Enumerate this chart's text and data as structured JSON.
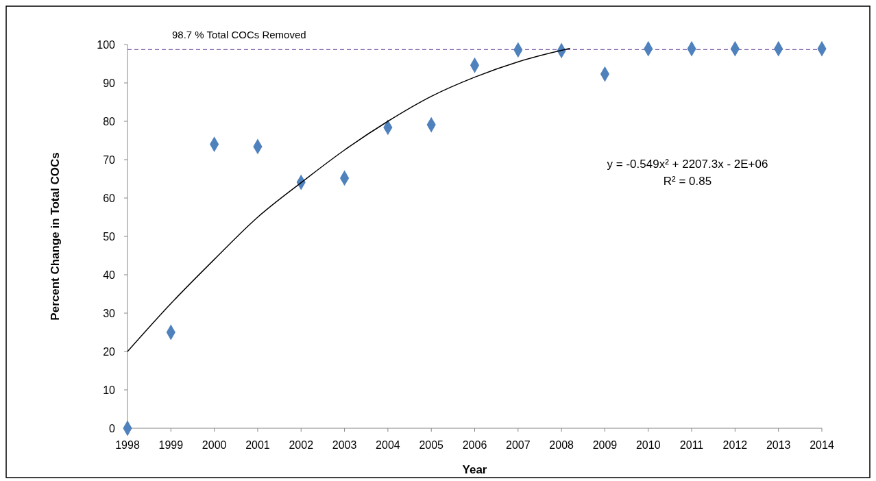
{
  "chart_data": {
    "type": "scatter",
    "xlabel": "Year",
    "ylabel": "Percent Change in Total COCs",
    "x": [
      1998,
      1999,
      2000,
      2001,
      2002,
      2003,
      2004,
      2005,
      2006,
      2007,
      2008,
      2009,
      2010,
      2011,
      2012,
      2013,
      2014
    ],
    "xlim": [
      1998,
      2014
    ],
    "xticks": [
      1998,
      1999,
      2000,
      2001,
      2002,
      2003,
      2004,
      2005,
      2006,
      2007,
      2008,
      2009,
      2010,
      2011,
      2012,
      2013,
      2014
    ],
    "ylim": [
      0,
      100
    ],
    "yticks": [
      0,
      10,
      20,
      30,
      40,
      50,
      60,
      70,
      80,
      90,
      100
    ],
    "grid": false,
    "series": [
      {
        "color": "#4f81bd",
        "marker": "diamond",
        "values": [
          0,
          25,
          74,
          73.4,
          64.1,
          65.2,
          78.4,
          79.1,
          94.6,
          98.6,
          98.4,
          92.3,
          98.9,
          98.9,
          98.9,
          98.9,
          98.9
        ]
      },
      {
        "type": "line",
        "color": "#000000",
        "marker": "none",
        "line_style": "solid",
        "x": [
          1998,
          1999,
          2000,
          2001,
          2002,
          2003,
          2004,
          2005,
          2006,
          2007,
          2008,
          2008.2
        ],
        "values": [
          20,
          32.5,
          44,
          55,
          64,
          72.5,
          80,
          86.5,
          91.5,
          95.5,
          98.5,
          99
        ]
      }
    ],
    "ref_lines": [
      {
        "axis": "y",
        "value": 98.7,
        "label": "98.7 % Total COCs Removed",
        "color": "#7f5fa8",
        "line_style": "dashed"
      }
    ],
    "annotations": [
      "y = -0.549x² + 2207.3x - 2E+06",
      "R² = 0.85"
    ]
  }
}
